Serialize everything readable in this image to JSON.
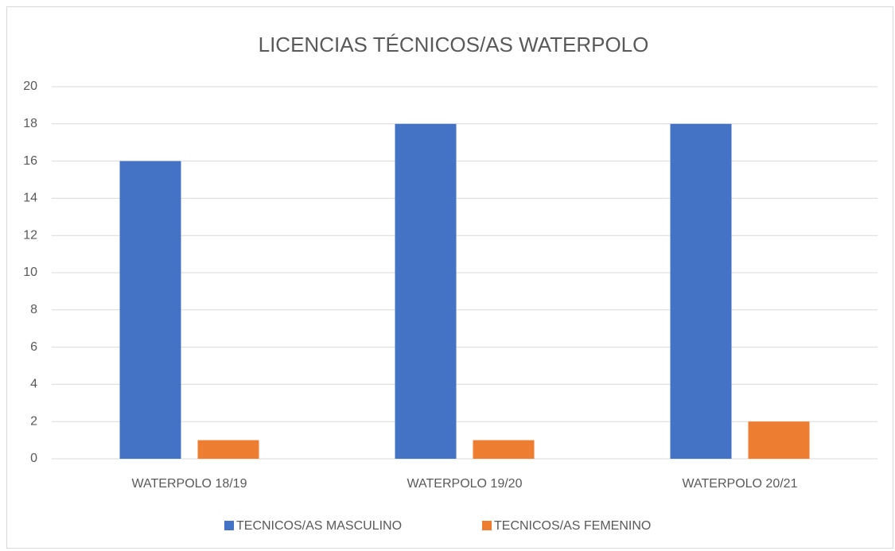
{
  "chart_data": {
    "type": "bar",
    "title": "LICENCIAS TÉCNICOS/AS WATERPOLO",
    "categories": [
      "WATERPOLO 18/19",
      "WATERPOLO 19/20",
      "WATERPOLO 20/21"
    ],
    "series": [
      {
        "name": "TECNICOS/AS MASCULINO",
        "color": "#4472c4",
        "values": [
          16,
          18,
          18
        ]
      },
      {
        "name": "TECNICOS/AS FEMENINO",
        "color": "#ed7d31",
        "values": [
          1,
          1,
          2
        ]
      }
    ],
    "ylim": [
      0,
      20
    ],
    "yticks": [
      0,
      2,
      4,
      6,
      8,
      10,
      12,
      14,
      16,
      18,
      20
    ],
    "grid": true,
    "legend": "bottom"
  }
}
